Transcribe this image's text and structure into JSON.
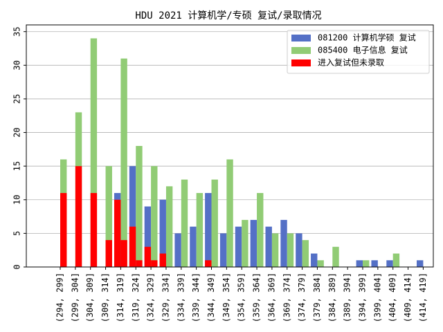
{
  "chart_data": {
    "type": "bar",
    "title": "HDU 2021 计算机学/专硕 复试/录取情况",
    "xlabel": "",
    "ylabel": "",
    "ylim": [
      0,
      36
    ],
    "yticks": [
      0,
      5,
      10,
      15,
      20,
      25,
      30,
      35
    ],
    "grid": "y",
    "legend_position": "top-right",
    "categories": [
      "(294, 299]",
      "(299, 304]",
      "(304, 309]",
      "(309, 314]",
      "(314, 319]",
      "(319, 324]",
      "(324, 329]",
      "(329, 334]",
      "(334, 339]",
      "(339, 344]",
      "(344, 349]",
      "(349, 354]",
      "(354, 359]",
      "(359, 364]",
      "(364, 369]",
      "(369, 374]",
      "(374, 379]",
      "(379, 384]",
      "(384, 389]",
      "(389, 394]",
      "(394, 399]",
      "(399, 404]",
      "(404, 409]",
      "(409, 414]",
      "(414, 419]"
    ],
    "series": [
      {
        "name": "081200 计算机学硕 复试",
        "color": "#5470c6",
        "values": [
          0,
          0,
          0,
          0,
          11,
          15,
          9,
          10,
          5,
          6,
          11,
          5,
          6,
          7,
          6,
          7,
          5,
          2,
          0,
          0,
          1,
          1,
          1,
          0,
          1
        ]
      },
      {
        "name": "085400 电子信息 复试",
        "color": "#91cc75",
        "values": [
          16,
          23,
          34,
          15,
          31,
          18,
          15,
          12,
          13,
          11,
          13,
          16,
          7,
          11,
          5,
          5,
          4,
          1,
          3,
          0,
          1,
          0,
          2,
          0,
          0
        ]
      },
      {
        "name": "进入复试但未录取",
        "color": "#ff0000",
        "values_left": [
          0,
          0,
          0,
          0,
          10,
          6,
          3,
          2,
          0,
          0,
          1,
          0,
          0,
          0,
          0,
          0,
          0,
          0,
          0,
          0,
          0,
          0,
          0,
          0,
          0
        ],
        "values_right": [
          11,
          15,
          11,
          4,
          4,
          1,
          1,
          0,
          0,
          0,
          0,
          0,
          0,
          0,
          0,
          0,
          0,
          0,
          0,
          0,
          0,
          0,
          0,
          0,
          0
        ]
      }
    ]
  }
}
